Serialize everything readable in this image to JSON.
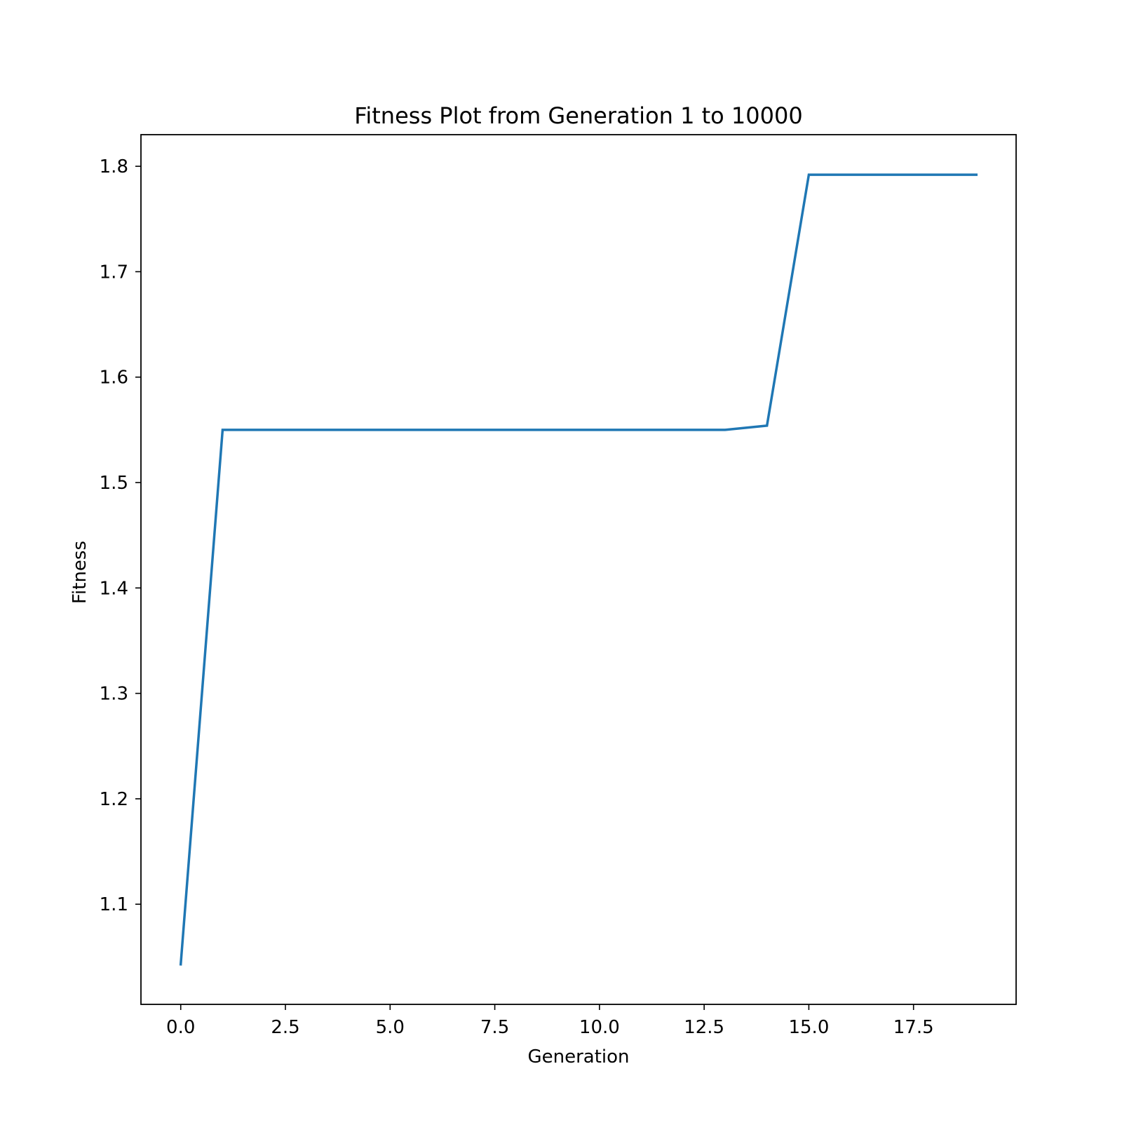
{
  "chart_data": {
    "type": "line",
    "title": "Fitness Plot from Generation 1 to 10000",
    "xlabel": "Generation",
    "ylabel": "Fitness",
    "xlim": [
      -0.95,
      19.95
    ],
    "ylim": [
      1.005,
      1.83
    ],
    "xticks": [
      0.0,
      2.5,
      5.0,
      7.5,
      10.0,
      12.5,
      15.0,
      17.5
    ],
    "xtick_labels": [
      "0.0",
      "2.5",
      "5.0",
      "7.5",
      "10.0",
      "12.5",
      "15.0",
      "17.5"
    ],
    "yticks": [
      1.1,
      1.2,
      1.3,
      1.4,
      1.5,
      1.6,
      1.7,
      1.8
    ],
    "ytick_labels": [
      "1.1",
      "1.2",
      "1.3",
      "1.4",
      "1.5",
      "1.6",
      "1.7",
      "1.8"
    ],
    "grid": false,
    "series": [
      {
        "color": "#1f77b4",
        "x": [
          0,
          1,
          2,
          3,
          4,
          5,
          6,
          7,
          8,
          9,
          10,
          11,
          12,
          13,
          14,
          15,
          16,
          17,
          18,
          19
        ],
        "values": [
          1.043,
          1.55,
          1.55,
          1.55,
          1.55,
          1.55,
          1.55,
          1.55,
          1.55,
          1.55,
          1.55,
          1.55,
          1.55,
          1.55,
          1.554,
          1.792,
          1.792,
          1.792,
          1.792,
          1.792
        ]
      }
    ]
  }
}
